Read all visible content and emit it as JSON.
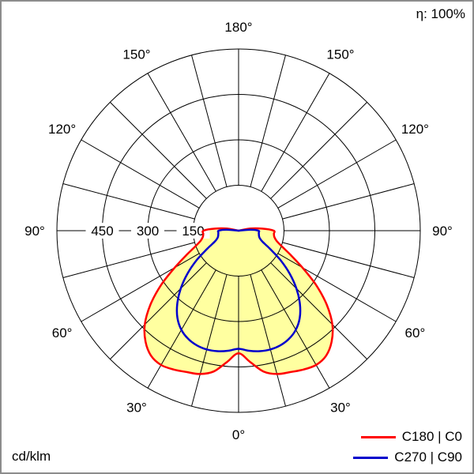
{
  "header": {
    "efficiency": "η: 100%"
  },
  "footer": {
    "units": "cd/klm"
  },
  "legend": [
    {
      "label": "C180 | C0",
      "color": "#ff0000"
    },
    {
      "label": "C270 | C90",
      "color": "#0000cc"
    }
  ],
  "chart_data": {
    "type": "polar_line",
    "title": "",
    "units": "cd/klm",
    "r_max": 600,
    "grid_circles": [
      150,
      300,
      450,
      600
    ],
    "angle_step_grid_deg": 15,
    "radial_ticks": [
      450,
      300,
      150
    ],
    "angle_ticks_deg": [
      0,
      30,
      60,
      90,
      120,
      150,
      180
    ],
    "angle_tick_labels": [
      "0°",
      "30°",
      "60°",
      "90°",
      "120°",
      "150°",
      "180°"
    ],
    "fill_color": "#ffffa0",
    "grid_color": "#000000",
    "series": [
      {
        "name": "C180 | C0",
        "color": "#ff0000",
        "fill": true,
        "symmetric": true,
        "gamma_deg": [
          0,
          5,
          10,
          15,
          20,
          25,
          30,
          35,
          40,
          45,
          50,
          55,
          60,
          65,
          70,
          75,
          80,
          85,
          90,
          95,
          100,
          105
        ],
        "values": [
          405,
          435,
          472,
          490,
          497,
          506,
          512,
          504,
          478,
          438,
          380,
          312,
          243,
          190,
          152,
          130,
          120,
          117,
          116,
          78,
          40,
          0
        ]
      },
      {
        "name": "C270 | C90",
        "color": "#0000cc",
        "fill": false,
        "symmetric": true,
        "gamma_deg": [
          0,
          5,
          10,
          15,
          20,
          25,
          30,
          35,
          40,
          45,
          50,
          55,
          60,
          65,
          70,
          75,
          80,
          85,
          90,
          95,
          100
        ],
        "values": [
          390,
          398,
          404,
          406,
          403,
          394,
          378,
          352,
          315,
          270,
          220,
          168,
          120,
          88,
          75,
          70,
          68,
          67,
          66,
          40,
          0
        ]
      }
    ]
  }
}
